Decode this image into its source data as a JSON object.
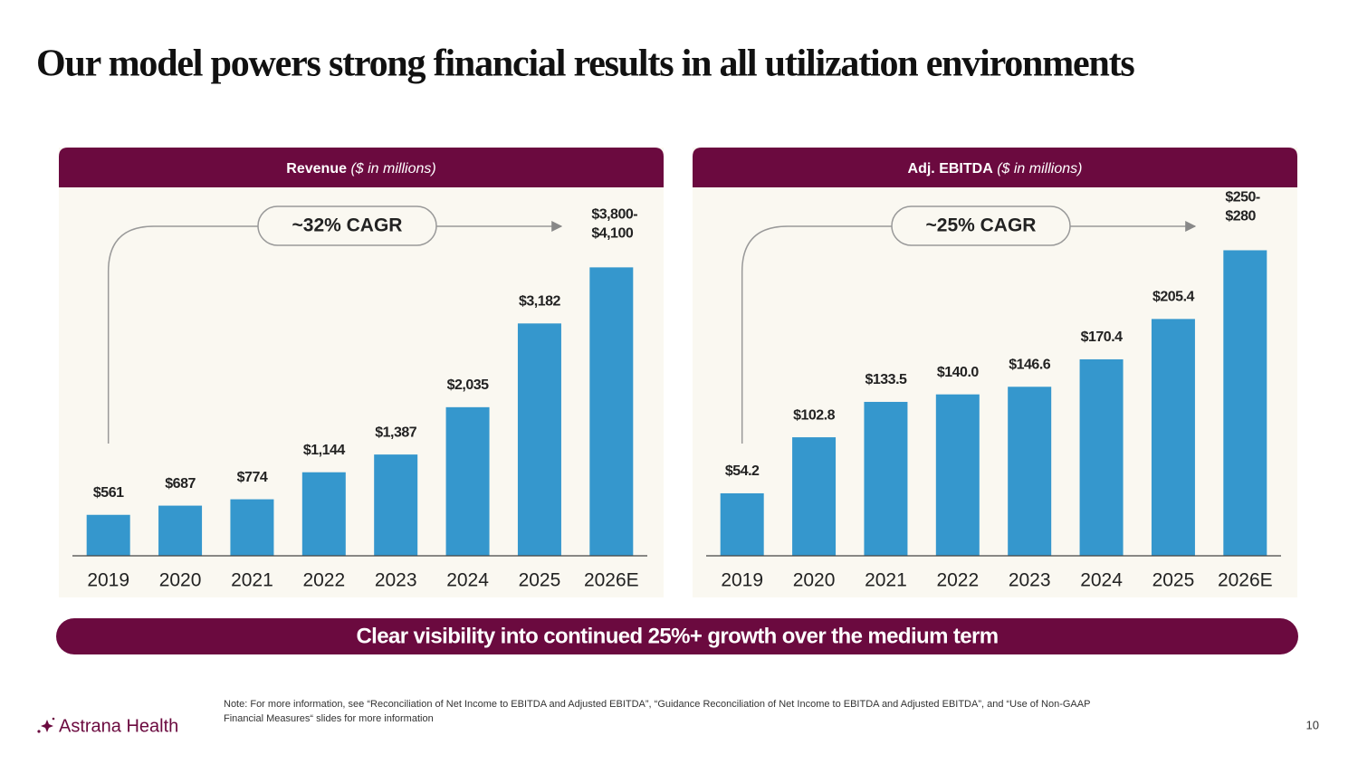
{
  "title": "Our model powers strong financial results in all utilization environments",
  "chart_data": [
    {
      "type": "bar",
      "title": "Revenue",
      "subtitle": "($ in millions)",
      "categories": [
        "2019",
        "2020",
        "2021",
        "2022",
        "2023",
        "2024",
        "2025",
        "2026E"
      ],
      "values": [
        561,
        687,
        774,
        1144,
        1387,
        2035,
        3182,
        3950
      ],
      "value_labels": [
        "$561",
        "$687",
        "$774",
        "$1,144",
        "$1,387",
        "$2,035",
        "$3,182",
        [
          "$3,800-",
          "$4,100"
        ]
      ],
      "color": "#3597cd",
      "ylim": [
        0,
        4500
      ],
      "annotation": "~32% CAGR"
    },
    {
      "type": "bar",
      "title": "Adj. EBITDA",
      "subtitle": "($ in millions)",
      "categories": [
        "2019",
        "2020",
        "2021",
        "2022",
        "2023",
        "2024",
        "2025",
        "2026E"
      ],
      "values": [
        54.2,
        102.8,
        133.5,
        140.0,
        146.6,
        170.4,
        205.4,
        265
      ],
      "value_labels": [
        "$54.2",
        "$102.8",
        "$133.5",
        "$140.0",
        "$146.6",
        "$170.4",
        "$205.4",
        [
          "$250-",
          "$280"
        ]
      ],
      "color": "#3597cd",
      "ylim": [
        0,
        285
      ],
      "annotation": "~25% CAGR"
    }
  ],
  "banner": "Clear visibility into continued 25%+ growth over the medium term",
  "note": [
    "Note: For more information, see “Reconciliation of Net Income to EBITDA and Adjusted EBITDA”, “Guidance Reconciliation of Net Income to EBITDA and Adjusted EBITDA”, and “Use of Non-GAAP",
    "Financial Measures“ slides for more information"
  ],
  "logo": "Astrana Health",
  "page_number": "10"
}
